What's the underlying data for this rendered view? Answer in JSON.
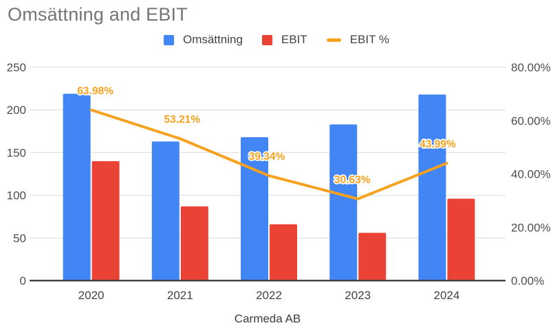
{
  "title": "Omsättning and EBIT",
  "legend": {
    "items": [
      {
        "label": "Omsättning",
        "color": "#4285F4",
        "shape": "square"
      },
      {
        "label": "EBIT",
        "color": "#EA4335",
        "shape": "square"
      },
      {
        "label": "EBIT %",
        "color": "#F6A21E",
        "shape": "line"
      }
    ]
  },
  "colors": {
    "bar_blue": "#4285F4",
    "bar_red": "#EA4335",
    "line_orange": "#F6A21E",
    "gridline": "#E2E2E2",
    "axis_line": "#424242",
    "tick_text": "#4d4d4d",
    "category_text": "#424242",
    "title_text": "#757575"
  },
  "chart_data": {
    "type": "combo",
    "title": "Omsättning and EBIT",
    "categories": [
      "2020",
      "2021",
      "2022",
      "2023",
      "2024"
    ],
    "series": [
      {
        "name": "Omsättning",
        "type": "bar",
        "axis": "left",
        "color": "#4285F4",
        "values": [
          219,
          163,
          168,
          183,
          218
        ]
      },
      {
        "name": "EBIT",
        "type": "bar",
        "axis": "left",
        "color": "#EA4335",
        "values": [
          140,
          87,
          66,
          56,
          96
        ]
      },
      {
        "name": "EBIT %",
        "type": "line",
        "axis": "right",
        "color": "#F6A21E",
        "values": [
          63.98,
          53.21,
          39.34,
          30.63,
          43.99
        ],
        "point_labels": [
          "63.98%",
          "53.21%",
          "39.34%",
          "30.63%",
          "43.99%"
        ]
      }
    ],
    "left_axis": {
      "min": 0,
      "max": 250,
      "tick_values": [
        0,
        50,
        100,
        150,
        200,
        250
      ],
      "tick_labels": [
        "0",
        "50",
        "100",
        "150",
        "200",
        "250"
      ]
    },
    "right_axis": {
      "min": 0,
      "max": 80,
      "tick_values": [
        0,
        20,
        40,
        60,
        80
      ],
      "tick_labels": [
        "0.00%",
        "20.00%",
        "40.00%",
        "60.00%",
        "80.00%"
      ]
    },
    "xlabel": "Carmeda AB",
    "grid": true,
    "legend_position": "top",
    "label_dx_offsets": [
      6,
      3,
      -3,
      -8,
      -13
    ]
  }
}
